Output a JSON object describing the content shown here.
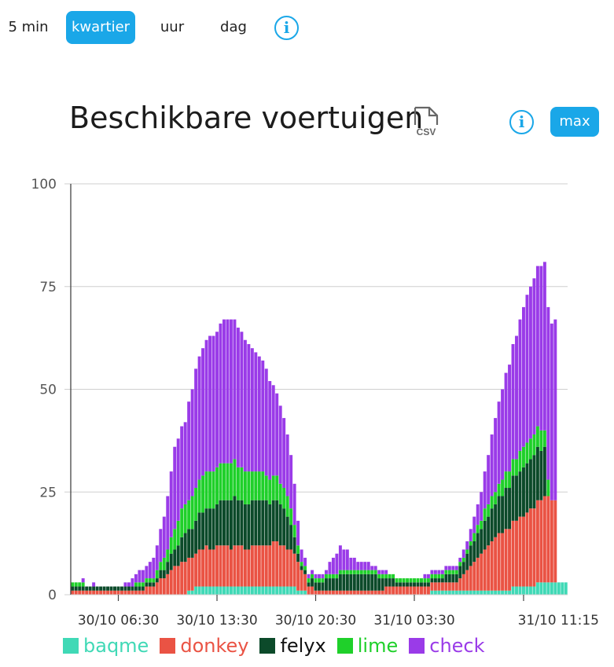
{
  "toolbar": {
    "buttons": [
      "5 min",
      "kwartier",
      "uur",
      "dag"
    ],
    "active": "kwartier",
    "info_icon": "i",
    "colors": {
      "accent": "#1aa7e8"
    }
  },
  "header": {
    "title": "Beschikbare voertuigen",
    "csv_label": "CSV",
    "info_icon": "i",
    "max_label": "max"
  },
  "chart_data": {
    "type": "bar",
    "stacked": true,
    "ylim": [
      0,
      100
    ],
    "yticks": [
      0,
      25,
      50,
      75,
      100
    ],
    "grid": true,
    "legend_position": "bottom",
    "xtick_labels": [
      "30/10 06:30",
      "30/10 13:30",
      "30/10 20:30",
      "31/10 03:30",
      "31/10 11:15"
    ],
    "xtick_index": [
      13,
      41,
      69,
      97,
      128
    ],
    "series": [
      {
        "name": "baqme",
        "color": "#40d9b6",
        "values": [
          0,
          0,
          0,
          0,
          0,
          0,
          0,
          0,
          0,
          0,
          0,
          0,
          0,
          0,
          0,
          0,
          0,
          0,
          0,
          0,
          0,
          0,
          0,
          0,
          0,
          0,
          0,
          0,
          0,
          0,
          0,
          0,
          0,
          1,
          1,
          2,
          2,
          2,
          2,
          2,
          2,
          2,
          2,
          2,
          2,
          2,
          2,
          2,
          2,
          2,
          2,
          2,
          2,
          2,
          2,
          2,
          2,
          2,
          2,
          2,
          2,
          2,
          2,
          2,
          1,
          1,
          1,
          0,
          0,
          0,
          0,
          0,
          0,
          0,
          0,
          0,
          0,
          0,
          0,
          0,
          0,
          0,
          0,
          0,
          0,
          0,
          0,
          0,
          0,
          0,
          0,
          0,
          0,
          0,
          0,
          0,
          0,
          0,
          0,
          0,
          0,
          0,
          1,
          1,
          1,
          1,
          1,
          1,
          1,
          1,
          1,
          1,
          1,
          1,
          1,
          1,
          1,
          1,
          1,
          1,
          1,
          1,
          1,
          1,
          1,
          2,
          2,
          2,
          2,
          2,
          2,
          2,
          3,
          3,
          3,
          3,
          3,
          3,
          3,
          3,
          3
        ]
      },
      {
        "name": "donkey",
        "color": "#ea5344",
        "values": [
          1,
          1,
          1,
          1,
          1,
          1,
          1,
          1,
          1,
          1,
          1,
          1,
          1,
          1,
          1,
          1,
          1,
          1,
          1,
          1,
          1,
          2,
          2,
          2,
          3,
          4,
          4,
          5,
          6,
          7,
          7,
          8,
          8,
          8,
          8,
          8,
          9,
          9,
          10,
          9,
          9,
          10,
          10,
          10,
          10,
          9,
          10,
          10,
          10,
          9,
          9,
          10,
          10,
          10,
          10,
          10,
          10,
          11,
          11,
          10,
          10,
          9,
          9,
          8,
          7,
          5,
          4,
          2,
          2,
          1,
          1,
          1,
          1,
          1,
          1,
          1,
          1,
          1,
          1,
          1,
          1,
          1,
          1,
          1,
          1,
          1,
          1,
          1,
          1,
          2,
          2,
          2,
          2,
          2,
          2,
          2,
          2,
          2,
          2,
          2,
          2,
          2,
          2,
          2,
          2,
          2,
          2,
          2,
          2,
          2,
          3,
          4,
          5,
          6,
          7,
          8,
          9,
          10,
          11,
          12,
          13,
          14,
          14,
          15,
          15,
          16,
          16,
          17,
          17,
          18,
          19,
          19,
          20,
          20,
          21,
          21,
          20,
          20
        ]
      },
      {
        "name": "felyx",
        "color": "#0c4a2a",
        "values": [
          1,
          1,
          1,
          1,
          1,
          1,
          1,
          1,
          1,
          1,
          1,
          1,
          1,
          1,
          1,
          1,
          1,
          1,
          1,
          1,
          1,
          1,
          1,
          1,
          1,
          2,
          2,
          3,
          4,
          4,
          5,
          6,
          7,
          7,
          7,
          8,
          9,
          9,
          9,
          10,
          10,
          10,
          11,
          11,
          11,
          12,
          12,
          11,
          11,
          11,
          11,
          11,
          11,
          11,
          11,
          11,
          10,
          10,
          10,
          10,
          9,
          8,
          6,
          4,
          2,
          1,
          1,
          1,
          2,
          2,
          2,
          2,
          3,
          3,
          3,
          3,
          4,
          4,
          4,
          4,
          4,
          4,
          4,
          4,
          4,
          4,
          4,
          3,
          3,
          2,
          2,
          2,
          1,
          1,
          1,
          1,
          1,
          1,
          1,
          1,
          1,
          1,
          1,
          1,
          1,
          1,
          2,
          2,
          2,
          2,
          3,
          3,
          4,
          5,
          5,
          6,
          6,
          7,
          7,
          8,
          8,
          9,
          9,
          10,
          10,
          11,
          11,
          11,
          12,
          12,
          12,
          13,
          13,
          12,
          12
        ]
      },
      {
        "name": "lime",
        "color": "#1fd02a",
        "values": [
          1,
          1,
          1,
          1,
          0,
          0,
          0,
          0,
          0,
          0,
          0,
          0,
          0,
          0,
          0,
          0,
          0,
          0,
          1,
          1,
          1,
          1,
          1,
          1,
          2,
          2,
          3,
          3,
          4,
          5,
          6,
          7,
          7,
          7,
          8,
          8,
          8,
          9,
          9,
          9,
          9,
          9,
          9,
          9,
          9,
          9,
          9,
          8,
          8,
          8,
          8,
          7,
          7,
          7,
          7,
          6,
          6,
          6,
          6,
          5,
          5,
          5,
          4,
          3,
          2,
          1,
          1,
          1,
          1,
          1,
          1,
          1,
          1,
          1,
          1,
          1,
          1,
          1,
          1,
          1,
          1,
          1,
          1,
          1,
          1,
          1,
          1,
          1,
          1,
          1,
          1,
          1,
          1,
          1,
          1,
          1,
          1,
          1,
          1,
          1,
          1,
          1,
          1,
          1,
          1,
          1,
          1,
          1,
          1,
          1,
          1,
          1,
          1,
          1,
          2,
          2,
          2,
          3,
          3,
          3,
          3,
          3,
          4,
          4,
          4,
          4,
          4,
          5,
          5,
          5,
          5,
          5,
          5,
          5,
          4,
          4
        ]
      },
      {
        "name": "check",
        "color": "#9a3be8",
        "values": [
          0,
          0,
          0,
          1,
          0,
          0,
          1,
          0,
          0,
          0,
          0,
          0,
          0,
          0,
          0,
          1,
          1,
          2,
          2,
          3,
          3,
          3,
          4,
          5,
          6,
          8,
          10,
          13,
          16,
          20,
          20,
          20,
          20,
          24,
          26,
          29,
          30,
          31,
          32,
          33,
          33,
          33,
          34,
          35,
          35,
          35,
          34,
          34,
          33,
          32,
          31,
          30,
          29,
          28,
          27,
          26,
          24,
          22,
          20,
          19,
          17,
          15,
          13,
          10,
          6,
          3,
          2,
          1,
          1,
          1,
          1,
          1,
          1,
          3,
          4,
          5,
          6,
          5,
          5,
          3,
          3,
          2,
          2,
          2,
          2,
          1,
          1,
          1,
          1,
          1,
          0,
          0,
          0,
          0,
          0,
          0,
          0,
          0,
          0,
          0,
          1,
          1,
          1,
          1,
          1,
          1,
          1,
          1,
          1,
          1,
          1,
          2,
          2,
          3,
          4,
          5,
          7,
          9,
          12,
          15,
          18,
          20,
          22,
          24,
          26,
          28,
          30,
          32,
          34,
          36,
          37,
          38,
          39,
          40,
          41,
          42,
          43,
          44
        ]
      }
    ]
  }
}
